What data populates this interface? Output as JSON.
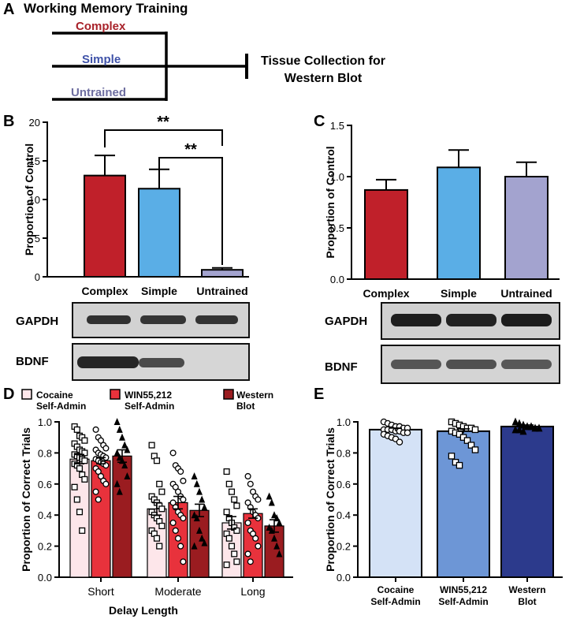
{
  "panels": {
    "A": {
      "label": "A",
      "title": "Working Memory Training",
      "branches": [
        {
          "label": "Complex",
          "color": "#a8222a"
        },
        {
          "label": "Simple",
          "color": "#3f52a8"
        },
        {
          "label": "Untrained",
          "color": "#6e6ea0"
        }
      ],
      "endpoint_line1": "Tissue Collection for",
      "endpoint_line2": "Western Blot"
    },
    "B": {
      "label": "B",
      "sig_upper": "**",
      "sig_lower": "**",
      "blot_top": "GAPDH",
      "blot_bottom": "BDNF"
    },
    "C": {
      "label": "C",
      "blot_top": "GAPDH",
      "blot_bottom": "BDNF"
    },
    "D": {
      "label": "D"
    },
    "E": {
      "label": "E"
    }
  },
  "colors": {
    "complex": "#c0202a",
    "simple": "#5aaee6",
    "untrained": "#a3a3cf",
    "cocaine_d": "#fde6ea",
    "win_d": "#e8323c",
    "western_d": "#9a1c20",
    "cocaine_e": "#d4e2f6",
    "win_e": "#6d96d6",
    "western_e": "#2c3a8c"
  },
  "chart_data": [
    {
      "id": "B",
      "type": "bar",
      "categories": [
        "Complex",
        "Simple",
        "Untrained"
      ],
      "values": [
        13.1,
        11.4,
        0.9
      ],
      "errors": [
        2.6,
        2.5,
        0.25
      ],
      "ylabel": "Proportion of Control",
      "ylim": [
        0,
        20
      ],
      "yticks": [
        0,
        5,
        10,
        15,
        20
      ],
      "ytick_labels": [
        "0",
        "5",
        "10",
        "15",
        "20"
      ]
    },
    {
      "id": "C",
      "type": "bar",
      "categories": [
        "Complex",
        "Simple",
        "Untrained"
      ],
      "values": [
        0.87,
        1.09,
        1.0
      ],
      "errors": [
        0.1,
        0.17,
        0.14
      ],
      "ylabel": "Proportion of Control",
      "ylim": [
        0,
        1.5
      ],
      "yticks": [
        0,
        0.5,
        1.0,
        1.5
      ],
      "ytick_labels": [
        "0.0",
        "0.5",
        "1.0",
        "1.5"
      ]
    },
    {
      "id": "D",
      "type": "bar",
      "categories": [
        "Short",
        "Moderate",
        "Long"
      ],
      "xlabel": "Delay  Length",
      "ylabel": "Proportion of Correct Trials",
      "ylim": [
        0,
        1.0
      ],
      "yticks": [
        0,
        0.2,
        0.4,
        0.6,
        0.8,
        1.0
      ],
      "ytick_labels": [
        "0.0",
        "0.2",
        "0.4",
        "0.6",
        "0.8",
        "1.0"
      ],
      "legend": [
        {
          "line1": "Cocaine",
          "line2": "Self-Admin"
        },
        {
          "line1": "WIN55,212",
          "line2": "Self-Admin"
        },
        {
          "line1": "Western",
          "line2": "Blot"
        }
      ],
      "series": [
        {
          "name": "Cocaine Self-Admin",
          "marker": "square",
          "values": [
            0.76,
            0.44,
            0.35
          ],
          "errors": [
            0.03,
            0.04,
            0.04
          ],
          "points": [
            [
              0.97,
              0.95,
              0.91,
              0.9,
              0.88,
              0.86,
              0.84,
              0.82,
              0.81,
              0.8,
              0.79,
              0.78,
              0.77,
              0.76,
              0.75,
              0.73,
              0.72,
              0.7,
              0.66,
              0.63,
              0.58,
              0.5,
              0.42,
              0.3
            ],
            [
              0.85,
              0.78,
              0.75,
              0.6,
              0.55,
              0.52,
              0.5,
              0.48,
              0.46,
              0.44,
              0.42,
              0.4,
              0.38,
              0.36,
              0.33,
              0.3,
              0.28,
              0.25,
              0.2
            ],
            [
              0.68,
              0.6,
              0.55,
              0.5,
              0.46,
              0.42,
              0.38,
              0.35,
              0.32,
              0.3,
              0.28,
              0.25,
              0.2,
              0.15,
              0.1,
              0.08
            ]
          ]
        },
        {
          "name": "WIN55,212 Self-Admin",
          "marker": "circle",
          "values": [
            0.75,
            0.48,
            0.41
          ],
          "errors": [
            0.02,
            0.04,
            0.03
          ],
          "points": [
            [
              0.95,
              0.9,
              0.88,
              0.85,
              0.83,
              0.82,
              0.8,
              0.79,
              0.78,
              0.77,
              0.76,
              0.75,
              0.74,
              0.73,
              0.72,
              0.7,
              0.68,
              0.65,
              0.62,
              0.6,
              0.55,
              0.5
            ],
            [
              0.8,
              0.72,
              0.7,
              0.68,
              0.62,
              0.6,
              0.58,
              0.55,
              0.52,
              0.5,
              0.48,
              0.45,
              0.42,
              0.4,
              0.38,
              0.35,
              0.3,
              0.25,
              0.2,
              0.1
            ],
            [
              0.65,
              0.6,
              0.55,
              0.52,
              0.5,
              0.48,
              0.45,
              0.42,
              0.4,
              0.38,
              0.35,
              0.3,
              0.28,
              0.25,
              0.2,
              0.15,
              0.1
            ]
          ]
        },
        {
          "name": "Western Blot",
          "marker": "triangle",
          "values": [
            0.78,
            0.43,
            0.33
          ],
          "errors": [
            0.04,
            0.04,
            0.04
          ],
          "points": [
            [
              1.0,
              0.95,
              0.9,
              0.85,
              0.82,
              0.8,
              0.77,
              0.75,
              0.72,
              0.65,
              0.6,
              0.55
            ],
            [
              0.65,
              0.6,
              0.55,
              0.5,
              0.45,
              0.4,
              0.38,
              0.3,
              0.25,
              0.22,
              0.2
            ],
            [
              0.52,
              0.48,
              0.4,
              0.38,
              0.35,
              0.32,
              0.3,
              0.25,
              0.2,
              0.15
            ]
          ]
        }
      ]
    },
    {
      "id": "E",
      "type": "bar",
      "categories": [
        [
          "Cocaine",
          "Self-Admin"
        ],
        [
          "WIN55,212",
          "Self-Admin"
        ],
        [
          "Western",
          "Blot"
        ]
      ],
      "values": [
        0.95,
        0.94,
        0.97
      ],
      "errors": [
        0.01,
        0.015,
        0.01
      ],
      "markers": [
        "circle",
        "square",
        "triangle"
      ],
      "points": [
        [
          1.0,
          0.99,
          0.98,
          0.97,
          0.97,
          0.96,
          0.96,
          0.95,
          0.95,
          0.95,
          0.94,
          0.94,
          0.93,
          0.93,
          0.92,
          0.91,
          0.9,
          0.89,
          0.87
        ],
        [
          1.0,
          0.99,
          0.98,
          0.97,
          0.96,
          0.96,
          0.95,
          0.94,
          0.93,
          0.92,
          0.9,
          0.88,
          0.85,
          0.82,
          0.78,
          0.74,
          0.72
        ],
        [
          1.0,
          0.99,
          0.98,
          0.97,
          0.97,
          0.96,
          0.96,
          0.95,
          0.95,
          0.94
        ]
      ],
      "ylabel": "Proportion of Correct Trials",
      "ylim": [
        0,
        1.0
      ],
      "yticks": [
        0,
        0.2,
        0.4,
        0.6,
        0.8,
        1.0
      ],
      "ytick_labels": [
        "0.0",
        "0.2",
        "0.4",
        "0.6",
        "0.8",
        "1.0"
      ]
    }
  ]
}
